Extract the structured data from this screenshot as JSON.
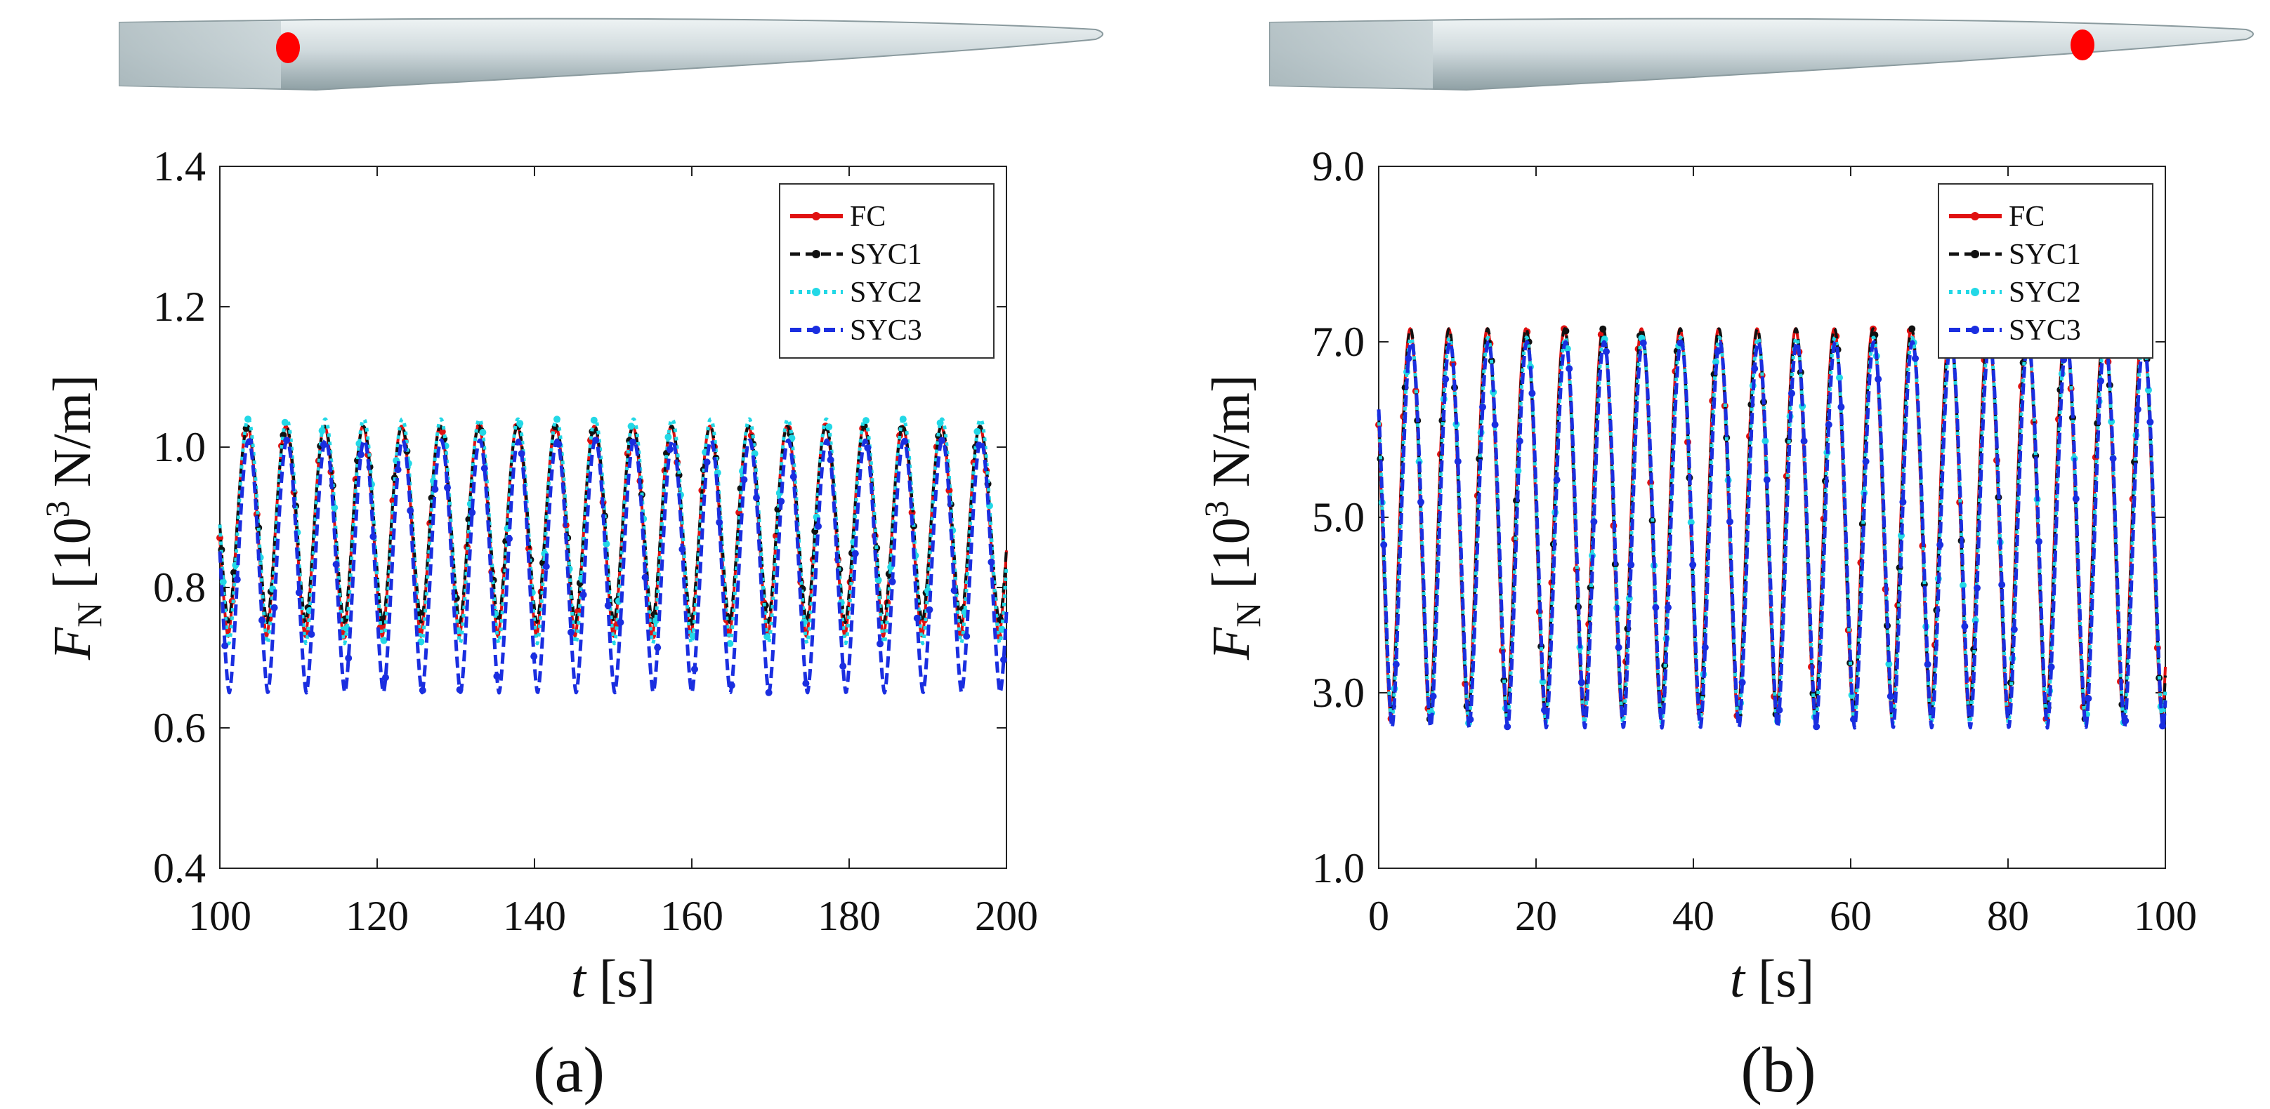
{
  "colors": {
    "FC": "#e01010",
    "SYC1": "#111111",
    "SYC2": "#22d8e6",
    "SYC3": "#1a2ee0",
    "blade": "#d2dde0",
    "marker": "#ff0000"
  },
  "chart_data": [
    {
      "type": "line",
      "panel_label": "(a)",
      "xlabel_italic": "t",
      "xlabel_unit": "[s]",
      "ylabel_symbol": "F",
      "ylabel_subscript": "N",
      "ylabel_unit_prefix": "[10",
      "ylabel_unit_exp": "3",
      "ylabel_unit_suffix": " N/m]",
      "xlim": [
        100,
        200
      ],
      "ylim": [
        0.4,
        1.4
      ],
      "xticks": [
        100,
        120,
        140,
        160,
        180,
        200
      ],
      "yticks": [
        0.4,
        0.6,
        0.8,
        1.0,
        1.2,
        1.4
      ],
      "xtick_labels": [
        "100",
        "120",
        "140",
        "160",
        "180",
        "200"
      ],
      "ytick_labels": [
        "0.4",
        "0.6",
        "0.8",
        "1.0",
        "1.2",
        "1.4"
      ],
      "legend_position": "top-right",
      "blade_marker_position": "root",
      "signal": {
        "period_s": 4.9,
        "peak_t": 103.5
      },
      "series": [
        {
          "name": "FC",
          "min": 0.73,
          "max": 1.03
        },
        {
          "name": "SYC1",
          "min": 0.75,
          "max": 1.03
        },
        {
          "name": "SYC2",
          "min": 0.72,
          "max": 1.04
        },
        {
          "name": "SYC3",
          "min": 0.65,
          "max": 1.01
        }
      ]
    },
    {
      "type": "line",
      "panel_label": "(b)",
      "xlabel_italic": "t",
      "xlabel_unit": "[s]",
      "ylabel_symbol": "F",
      "ylabel_subscript": "N",
      "ylabel_unit_prefix": "[10",
      "ylabel_unit_exp": "3",
      "ylabel_unit_suffix": " N/m]",
      "xlim": [
        0,
        100
      ],
      "ylim": [
        1.0,
        9.0
      ],
      "xticks": [
        0,
        20,
        40,
        60,
        80,
        100
      ],
      "yticks": [
        1.0,
        3.0,
        5.0,
        7.0,
        9.0
      ],
      "xtick_labels": [
        "0",
        "20",
        "40",
        "60",
        "80",
        "100"
      ],
      "ytick_labels": [
        "1.0",
        "3.0",
        "5.0",
        "7.0",
        "9.0"
      ],
      "legend_position": "top-right",
      "blade_marker_position": "tip",
      "signal": {
        "period_s": 4.9,
        "peak_t": 4.0
      },
      "series": [
        {
          "name": "FC",
          "min": 2.7,
          "max": 7.15
        },
        {
          "name": "SYC1",
          "min": 2.7,
          "max": 7.15
        },
        {
          "name": "SYC2",
          "min": 2.65,
          "max": 7.05
        },
        {
          "name": "SYC3",
          "min": 2.6,
          "max": 7.0
        }
      ]
    }
  ]
}
